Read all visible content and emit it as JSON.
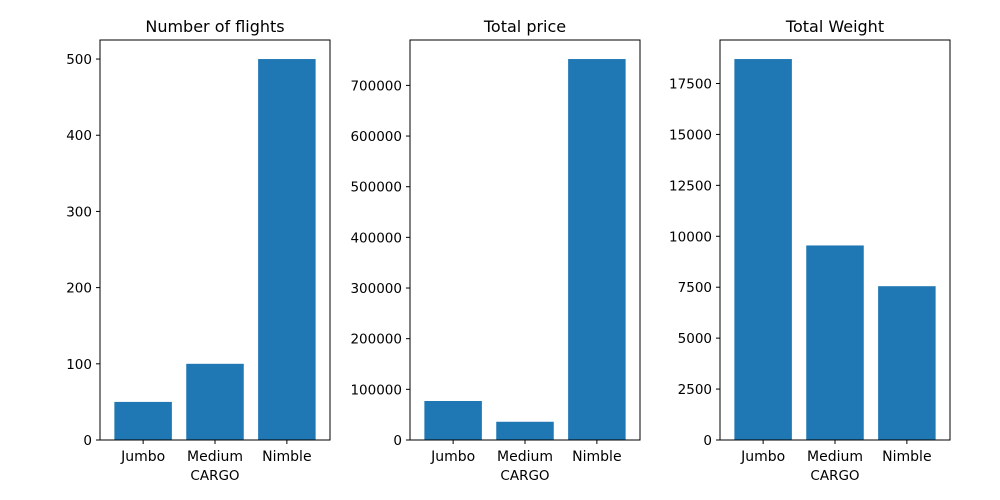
{
  "chart_data": [
    {
      "type": "bar",
      "title": "Number of flights",
      "xlabel": "CARGO",
      "ylabel": "",
      "categories": [
        "Jumbo",
        "Medium",
        "Nimble"
      ],
      "values": [
        50,
        100,
        500
      ],
      "ylim": [
        0,
        525
      ],
      "yticks": [
        0,
        100,
        200,
        300,
        400,
        500
      ],
      "ytick_labels": [
        "0",
        "100",
        "200",
        "300",
        "400",
        "500"
      ],
      "color": "#1f77b4",
      "grid": false
    },
    {
      "type": "bar",
      "title": "Total price",
      "xlabel": "CARGO",
      "ylabel": "",
      "categories": [
        "Jumbo",
        "Medium",
        "Nimble"
      ],
      "values": [
        77000,
        36000,
        752000
      ],
      "ylim": [
        0,
        789600
      ],
      "yticks": [
        0,
        100000,
        200000,
        300000,
        400000,
        500000,
        600000,
        700000
      ],
      "ytick_labels": [
        "0",
        "100000",
        "200000",
        "300000",
        "400000",
        "500000",
        "600000",
        "700000"
      ],
      "color": "#1f77b4",
      "grid": false
    },
    {
      "type": "bar",
      "title": "Total Weight",
      "xlabel": "CARGO",
      "ylabel": "",
      "categories": [
        "Jumbo",
        "Medium",
        "Nimble"
      ],
      "values": [
        18700,
        9550,
        7550
      ],
      "ylim": [
        0,
        19635
      ],
      "yticks": [
        0,
        2500,
        5000,
        7500,
        10000,
        12500,
        15000,
        17500
      ],
      "ytick_labels": [
        "0",
        "2500",
        "5000",
        "7500",
        "10000",
        "12500",
        "15000",
        "17500"
      ],
      "color": "#1f77b4",
      "grid": false
    }
  ]
}
